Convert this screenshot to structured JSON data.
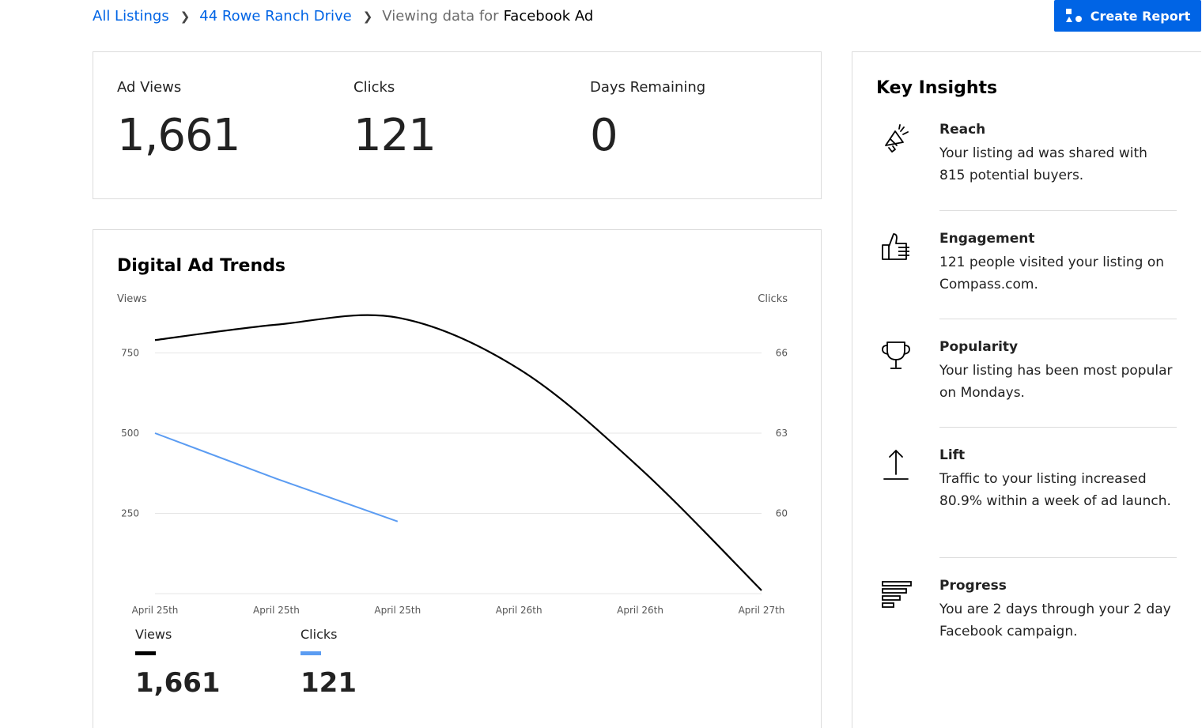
{
  "breadcrumb": {
    "all_listings": "All Listings",
    "listing": "44 Rowe Ranch Drive",
    "viewing_prefix": "Viewing data for",
    "channel": "Facebook Ad",
    "separator": ">"
  },
  "toolbar": {
    "create_report_label": "Create Report"
  },
  "stats": {
    "ad_views_label": "Ad Views",
    "ad_views_value": "1,661",
    "clicks_label": "Clicks",
    "clicks_value": "121",
    "days_remaining_label": "Days Remaining",
    "days_remaining_value": "0"
  },
  "chart": {
    "title": "Digital Ad Trends",
    "left_axis_title": "Views",
    "right_axis_title": "Clicks",
    "legend": [
      {
        "label": "Views",
        "value": "1,661",
        "color": "#000000"
      },
      {
        "label": "Clicks",
        "value": "121",
        "color": "#5b9cf2"
      }
    ]
  },
  "chart_data": {
    "type": "line",
    "title": "Digital Ad Trends",
    "xlabel": "",
    "ylabel": "Views",
    "y2label": "Clicks",
    "x": [
      "April 25th",
      "April 25th",
      "April 25th",
      "April 26th",
      "April 26th",
      "April 27th"
    ],
    "ylim": [
      0,
      750
    ],
    "y_ticks": [
      250,
      500,
      750
    ],
    "y2_ticks": [
      60,
      63,
      66
    ],
    "grid": true,
    "series": [
      {
        "name": "Views",
        "axis": "left",
        "color": "#000000",
        "values": [
          790,
          838,
          860,
          700,
          390,
          10
        ]
      },
      {
        "name": "Clicks",
        "axis": "right",
        "color": "#5b9cf2",
        "values": [
          63,
          61.3,
          59.7,
          null,
          null,
          null
        ]
      }
    ]
  },
  "insights": {
    "title": "Key Insights",
    "items": [
      {
        "icon": "megaphone-icon",
        "heading": "Reach",
        "body": "Your listing ad was shared with 815 potential buyers."
      },
      {
        "icon": "thumbs-up-icon",
        "heading": "Engagement",
        "body": "121 people visited your listing on Compass.com."
      },
      {
        "icon": "trophy-icon",
        "heading": "Popularity",
        "body": "Your listing has been most popular on Mondays."
      },
      {
        "icon": "arrow-up-icon",
        "heading": "Lift",
        "body": "Traffic to your listing increased 80.9% within a week of ad launch."
      },
      {
        "icon": "progress-bars-icon",
        "heading": "Progress",
        "body": "You are 2 days through your 2 day Facebook campaign."
      }
    ]
  }
}
